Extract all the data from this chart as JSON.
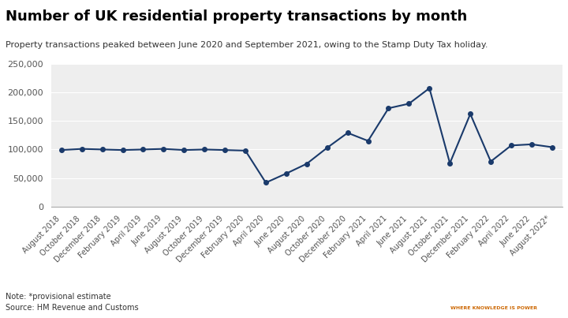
{
  "title": "Number of UK residential property transactions by month",
  "subtitle": "Property transactions peaked between June 2020 and September 2021, owing to the Stamp Duty Tax holiday.",
  "note": "Note: *provisional estimate",
  "source": "Source: HM Revenue and Customs",
  "line_color": "#1a3a6b",
  "background_color": "#eeeeee",
  "ylim": [
    0,
    250000
  ],
  "yticks": [
    0,
    50000,
    100000,
    150000,
    200000,
    250000
  ],
  "labels": [
    "August 2018",
    "October 2018",
    "December 2018",
    "February 2019",
    "April 2019",
    "June 2019",
    "August 2019",
    "October 2019",
    "December 2019",
    "February 2020",
    "April 2020",
    "June 2020",
    "August 2020",
    "October 2020",
    "December 2020",
    "February 2021",
    "April 2021",
    "June 2021",
    "August 2021",
    "October 2021",
    "December 2021",
    "February 2022",
    "April 2022",
    "June 2022",
    "August 2022*"
  ],
  "values": [
    99000,
    101000,
    100000,
    99000,
    100000,
    101000,
    99000,
    100000,
    99000,
    98000,
    42000,
    58000,
    75000,
    103000,
    129000,
    115000,
    172000,
    180000,
    207000,
    76000,
    162000,
    79000,
    107000,
    109000,
    104000
  ]
}
